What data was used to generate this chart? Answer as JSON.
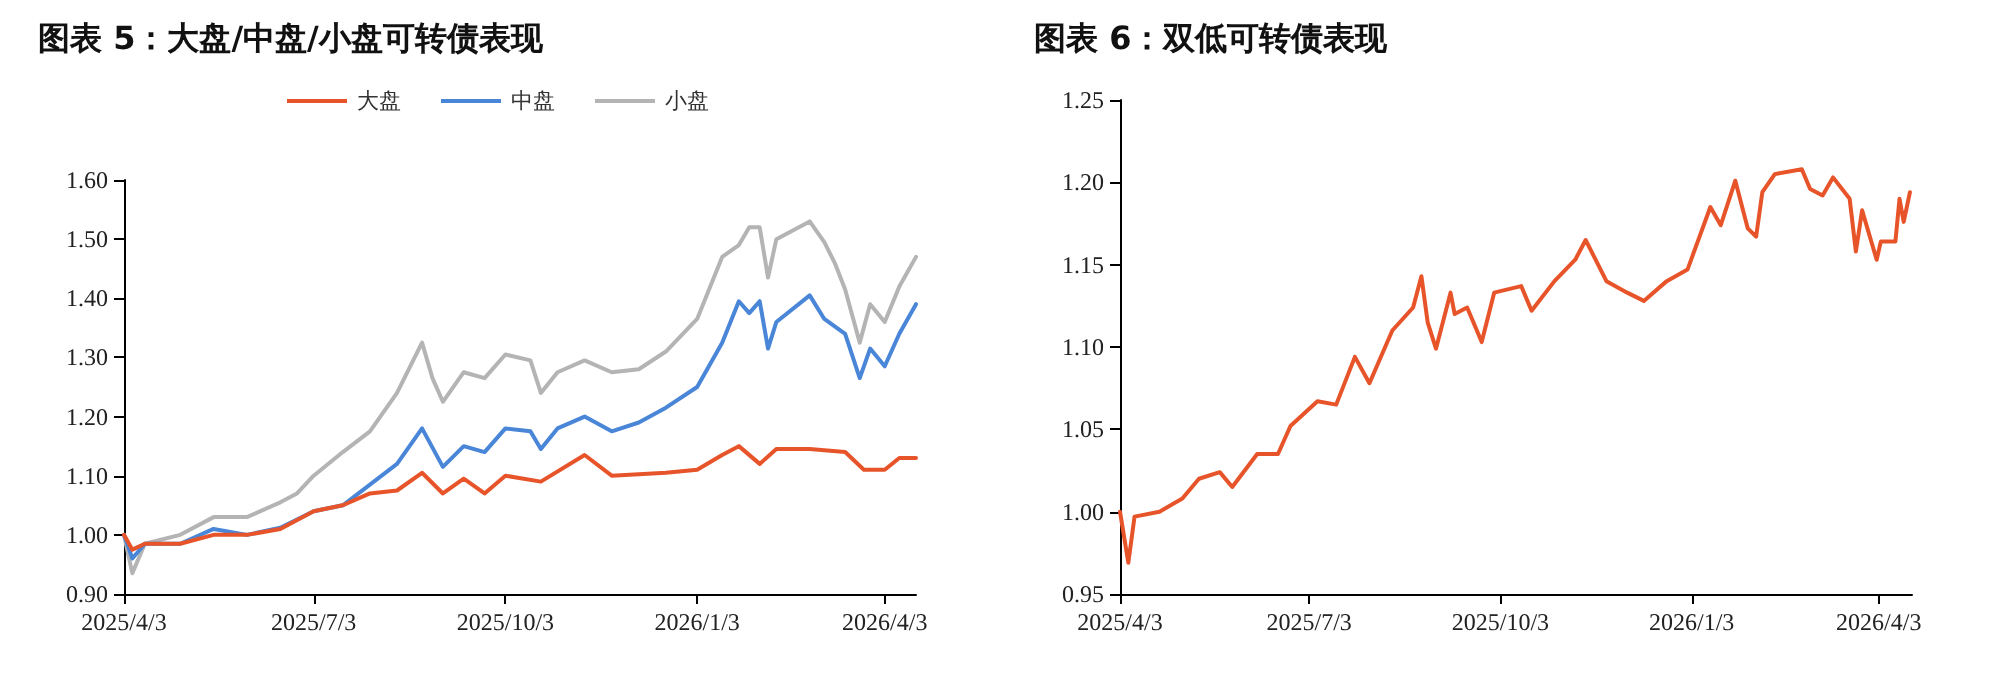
{
  "chart_data": [
    {
      "type": "line",
      "title": "图表 5：大盘/中盘/小盘可转债表现",
      "legend": "top",
      "grid": false,
      "marker": "none",
      "line_style": "solid",
      "xlim": [
        "2025-04-03",
        "2026-04-18"
      ],
      "xticks": [
        {
          "value": "2025-04-03",
          "label": "2025/4/3"
        },
        {
          "value": "2025-07-03",
          "label": "2025/7/3"
        },
        {
          "value": "2025-10-03",
          "label": "2025/10/3"
        },
        {
          "value": "2026-01-03",
          "label": "2026/1/3"
        },
        {
          "value": "2026-04-03",
          "label": "2026/4/3"
        }
      ],
      "ylim": [
        0.9,
        1.6
      ],
      "yticks": [
        {
          "value": 0.9,
          "label": "0.90"
        },
        {
          "value": 1.0,
          "label": "1.00"
        },
        {
          "value": 1.1,
          "label": "1.10"
        },
        {
          "value": 1.2,
          "label": "1.20"
        },
        {
          "value": 1.3,
          "label": "1.30"
        },
        {
          "value": 1.4,
          "label": "1.40"
        },
        {
          "value": 1.5,
          "label": "1.50"
        },
        {
          "value": 1.6,
          "label": "1.60"
        }
      ],
      "series": [
        {
          "name": "大盘",
          "color": "#e8542a",
          "x": [
            "2025-04-03",
            "2025-04-07",
            "2025-04-13",
            "2025-04-30",
            "2025-05-16",
            "2025-06-01",
            "2025-06-17",
            "2025-07-03",
            "2025-07-17",
            "2025-07-30",
            "2025-08-12",
            "2025-08-24",
            "2025-09-03",
            "2025-09-13",
            "2025-09-23",
            "2025-10-03",
            "2025-10-20",
            "2025-11-10",
            "2025-11-23",
            "2025-12-19",
            "2026-01-03",
            "2026-01-15",
            "2026-01-23",
            "2026-02-02",
            "2026-02-10",
            "2026-02-26",
            "2026-03-15",
            "2026-03-24",
            "2026-04-03",
            "2026-04-10",
            "2026-04-18"
          ],
          "values": [
            1.0,
            0.975,
            0.985,
            0.985,
            1.0,
            1.0,
            1.01,
            1.04,
            1.05,
            1.07,
            1.075,
            1.105,
            1.07,
            1.095,
            1.07,
            1.1,
            1.09,
            1.135,
            1.1,
            1.105,
            1.11,
            1.135,
            1.15,
            1.12,
            1.145,
            1.145,
            1.14,
            1.11,
            1.11,
            1.13,
            1.13
          ]
        },
        {
          "name": "中盘",
          "color": "#4a86d8",
          "x": [
            "2025-04-03",
            "2025-04-07",
            "2025-04-13",
            "2025-04-30",
            "2025-05-16",
            "2025-06-01",
            "2025-06-17",
            "2025-07-03",
            "2025-07-17",
            "2025-07-30",
            "2025-08-12",
            "2025-08-24",
            "2025-09-03",
            "2025-09-13",
            "2025-09-23",
            "2025-10-03",
            "2025-10-15",
            "2025-10-20",
            "2025-10-28",
            "2025-11-10",
            "2025-11-23",
            "2025-12-06",
            "2025-12-19",
            "2026-01-03",
            "2026-01-15",
            "2026-01-23",
            "2026-01-28",
            "2026-02-02",
            "2026-02-06",
            "2026-02-10",
            "2026-02-26",
            "2026-03-05",
            "2026-03-15",
            "2026-03-22",
            "2026-03-27",
            "2026-04-03",
            "2026-04-10",
            "2026-04-18"
          ],
          "values": [
            1.0,
            0.96,
            0.985,
            0.985,
            1.01,
            1.0,
            1.012,
            1.04,
            1.05,
            1.085,
            1.12,
            1.18,
            1.115,
            1.15,
            1.14,
            1.18,
            1.175,
            1.145,
            1.18,
            1.2,
            1.175,
            1.19,
            1.215,
            1.25,
            1.325,
            1.395,
            1.375,
            1.395,
            1.315,
            1.36,
            1.405,
            1.365,
            1.34,
            1.265,
            1.315,
            1.285,
            1.34,
            1.39
          ]
        },
        {
          "name": "小盘",
          "color": "#b4b4b4",
          "x": [
            "2025-04-03",
            "2025-04-07",
            "2025-04-13",
            "2025-04-30",
            "2025-05-16",
            "2025-06-01",
            "2025-06-17",
            "2025-06-25",
            "2025-07-03",
            "2025-07-17",
            "2025-07-30",
            "2025-08-12",
            "2025-08-24",
            "2025-08-29",
            "2025-09-03",
            "2025-09-13",
            "2025-09-23",
            "2025-10-03",
            "2025-10-15",
            "2025-10-20",
            "2025-10-28",
            "2025-11-10",
            "2025-11-23",
            "2025-12-06",
            "2025-12-19",
            "2026-01-03",
            "2026-01-15",
            "2026-01-23",
            "2026-01-28",
            "2026-02-02",
            "2026-02-06",
            "2026-02-10",
            "2026-02-26",
            "2026-03-05",
            "2026-03-10",
            "2026-03-15",
            "2026-03-22",
            "2026-03-27",
            "2026-04-03",
            "2026-04-10",
            "2026-04-18"
          ],
          "values": [
            1.0,
            0.935,
            0.985,
            1.0,
            1.03,
            1.03,
            1.055,
            1.07,
            1.1,
            1.14,
            1.175,
            1.24,
            1.325,
            1.265,
            1.225,
            1.275,
            1.265,
            1.305,
            1.295,
            1.24,
            1.275,
            1.295,
            1.275,
            1.28,
            1.31,
            1.365,
            1.47,
            1.49,
            1.52,
            1.52,
            1.435,
            1.5,
            1.53,
            1.495,
            1.46,
            1.415,
            1.325,
            1.39,
            1.36,
            1.42,
            1.47
          ]
        }
      ]
    },
    {
      "type": "line",
      "title": "图表 6：双低可转债表现",
      "grid": false,
      "marker": "none",
      "line_style": "solid",
      "xlim": [
        "2025-04-03",
        "2026-04-19"
      ],
      "xticks": [
        {
          "value": "2025-04-03",
          "label": "2025/4/3"
        },
        {
          "value": "2025-07-03",
          "label": "2025/7/3"
        },
        {
          "value": "2025-10-03",
          "label": "2025/10/3"
        },
        {
          "value": "2026-01-03",
          "label": "2026/1/3"
        },
        {
          "value": "2026-04-03",
          "label": "2026/4/3"
        }
      ],
      "ylim": [
        0.95,
        1.25
      ],
      "yticks": [
        {
          "value": 0.95,
          "label": "0.95"
        },
        {
          "value": 1.0,
          "label": "1.00"
        },
        {
          "value": 1.05,
          "label": "1.05"
        },
        {
          "value": 1.1,
          "label": "1.10"
        },
        {
          "value": 1.15,
          "label": "1.15"
        },
        {
          "value": 1.2,
          "label": "1.20"
        },
        {
          "value": 1.25,
          "label": "1.25"
        }
      ],
      "series": [
        {
          "color": "#e8542a",
          "x": [
            "2025-04-03",
            "2025-04-07",
            "2025-04-10",
            "2025-04-22",
            "2025-05-03",
            "2025-05-11",
            "2025-05-21",
            "2025-05-27",
            "2025-06-08",
            "2025-06-18",
            "2025-06-24",
            "2025-07-07",
            "2025-07-16",
            "2025-07-25",
            "2025-08-01",
            "2025-08-12",
            "2025-08-22",
            "2025-08-26",
            "2025-08-29",
            "2025-09-02",
            "2025-09-09",
            "2025-09-11",
            "2025-09-17",
            "2025-09-24",
            "2025-09-30",
            "2025-10-13",
            "2025-10-18",
            "2025-10-29",
            "2025-11-08",
            "2025-11-13",
            "2025-11-23",
            "2025-12-03",
            "2025-12-11",
            "2025-12-22",
            "2026-01-01",
            "2026-01-12",
            "2026-01-17",
            "2026-01-24",
            "2026-01-30",
            "2026-02-03",
            "2026-02-06",
            "2026-02-12",
            "2026-02-25",
            "2026-03-01",
            "2026-03-07",
            "2026-03-12",
            "2026-03-20",
            "2026-03-23",
            "2026-03-26",
            "2026-04-02",
            "2026-04-04",
            "2026-04-11",
            "2026-04-13",
            "2026-04-15",
            "2026-04-18"
          ],
          "values": [
            1.0,
            0.969,
            0.997,
            1.0,
            1.008,
            1.02,
            1.024,
            1.015,
            1.035,
            1.035,
            1.052,
            1.067,
            1.065,
            1.094,
            1.078,
            1.11,
            1.124,
            1.143,
            1.115,
            1.099,
            1.133,
            1.12,
            1.124,
            1.103,
            1.133,
            1.137,
            1.122,
            1.14,
            1.153,
            1.165,
            1.14,
            1.133,
            1.128,
            1.14,
            1.147,
            1.185,
            1.174,
            1.201,
            1.172,
            1.167,
            1.194,
            1.205,
            1.208,
            1.196,
            1.192,
            1.203,
            1.19,
            1.158,
            1.183,
            1.153,
            1.164,
            1.164,
            1.19,
            1.176,
            1.194
          ]
        }
      ]
    }
  ]
}
